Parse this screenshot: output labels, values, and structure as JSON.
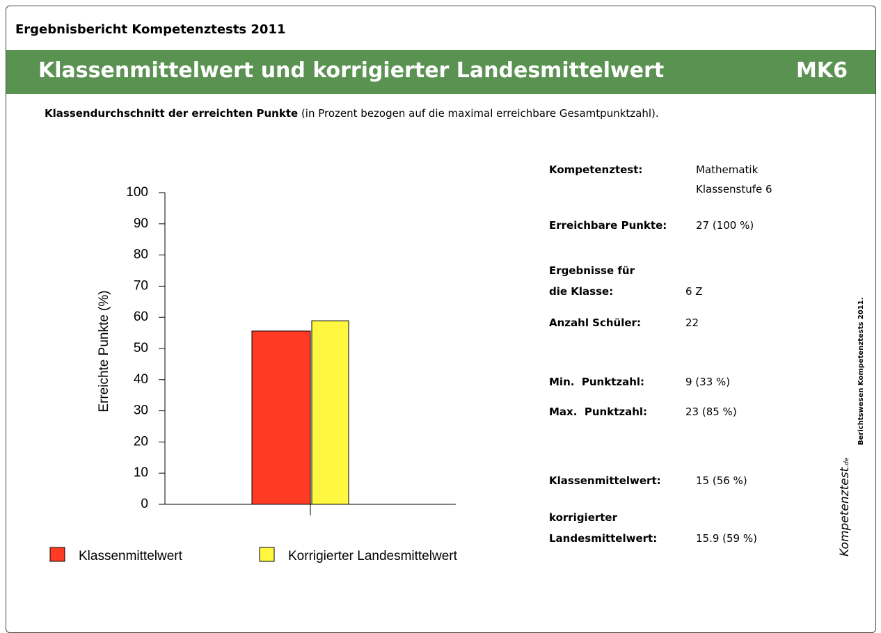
{
  "header": {
    "title": "Ergebnisbericht Kompetenztests 2011"
  },
  "banner": {
    "title": "Klassenmittelwert und korrigierter Landesmittelwert",
    "code": "MK6"
  },
  "intro": {
    "bold": "Klassendurchschnitt der erreichten Punkte",
    "text": "(in Prozent bezogen auf die maximal erreichbare Gesamtpunktzahl)."
  },
  "chart_data": {
    "type": "bar",
    "ylabel": "Erreichte Punkte (%)",
    "categories": [
      null
    ],
    "series": [
      {
        "name": "Klassenmittelwert",
        "color": "#ff3b24",
        "values": [
          55.6
        ]
      },
      {
        "name": "Korrigierter Landesmittelwert",
        "color": "#fff740",
        "values": [
          58.9
        ]
      }
    ],
    "ylim": [
      0,
      100
    ],
    "yticks": [
      0,
      10,
      20,
      30,
      40,
      50,
      60,
      70,
      80,
      90,
      100
    ]
  },
  "info": [
    {
      "label": [
        "Kompetenztest:"
      ],
      "value": [
        "Mathematik",
        "Klassenstufe 6"
      ]
    },
    {
      "label": [
        "Erreichbare Punkte:"
      ],
      "value": [
        "27 (100 %)"
      ]
    },
    {
      "label": [
        "Ergebnisse für",
        "die Klasse:"
      ],
      "value": [
        "6 Z"
      ]
    },
    {
      "label": [
        "Anzahl Schüler:"
      ],
      "value": [
        "22"
      ]
    },
    {
      "label": [
        "Min.  Punktzahl:"
      ],
      "value": [
        "9 (33 %)"
      ]
    },
    {
      "label": [
        "Max.  Punktzahl:"
      ],
      "value": [
        "23 (85 %)"
      ]
    },
    {
      "label": [
        "Klassenmittelwert:"
      ],
      "value": [
        "15 (56 %)"
      ]
    },
    {
      "label": [
        "korrigierter",
        "Landesmittelwert:"
      ],
      "value": [
        "15.9 (59 %)"
      ]
    }
  ],
  "side": {
    "credit": "Berichtswesen Kompetenztests 2011.",
    "logo": "Kompetenztest",
    "logo_suffix": ".de"
  }
}
